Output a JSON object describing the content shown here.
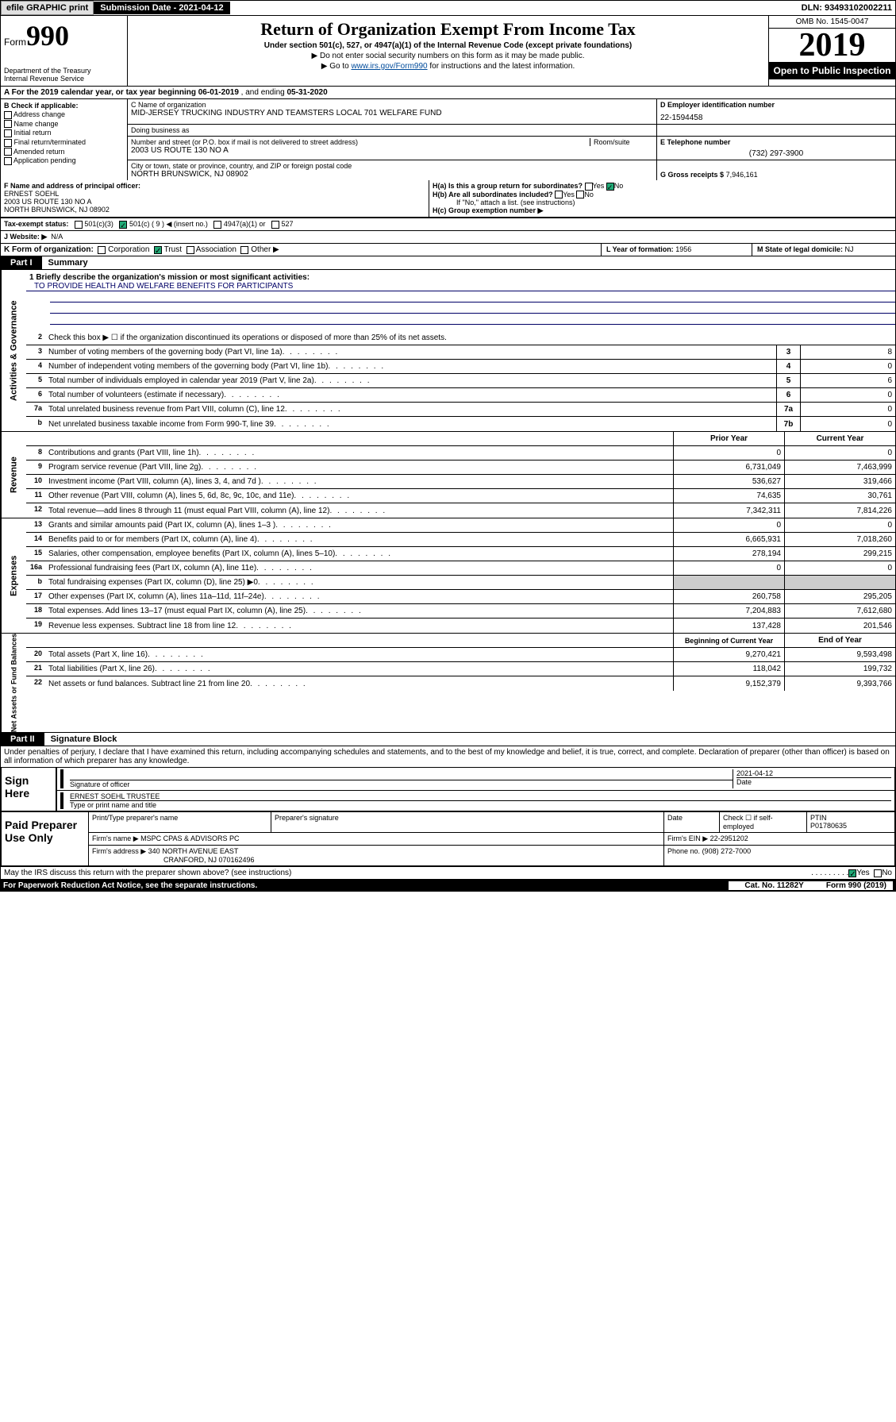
{
  "topbar": {
    "efile": "efile GRAPHIC print",
    "submission_label": "Submission Date - 2021-04-12",
    "dln": "DLN: 93493102002211"
  },
  "header": {
    "form_prefix": "Form",
    "form_num": "990",
    "dept": "Department of the Treasury\nInternal Revenue Service",
    "title": "Return of Organization Exempt From Income Tax",
    "subtitle": "Under section 501(c), 527, or 4947(a)(1) of the Internal Revenue Code (except private foundations)",
    "sub1": "▶ Do not enter social security numbers on this form as it may be made public.",
    "sub2_pre": "▶ Go to ",
    "sub2_link": "www.irs.gov/Form990",
    "sub2_post": " for instructions and the latest information.",
    "omb": "OMB No. 1545-0047",
    "year": "2019",
    "open": "Open to Public Inspection"
  },
  "lineA": {
    "text_pre": "A  For the 2019 calendar year, or tax year beginning ",
    "begin": "06-01-2019",
    "mid": " , and ending ",
    "end": "05-31-2020"
  },
  "boxB": {
    "label": "B Check if applicable:",
    "opts": [
      "Address change",
      "Name change",
      "Initial return",
      "Final return/terminated",
      "Amended return",
      "Application pending"
    ]
  },
  "boxC": {
    "name_label": "C Name of organization",
    "name": "MID-JERSEY TRUCKING INDUSTRY AND TEAMSTERS LOCAL 701 WELFARE FUND",
    "dba_label": "Doing business as",
    "addr_label": "Number and street (or P.O. box if mail is not delivered to street address)",
    "room_label": "Room/suite",
    "addr": "2003 US ROUTE 130 NO A",
    "city_label": "City or town, state or province, country, and ZIP or foreign postal code",
    "city": "NORTH BRUNSWICK, NJ  08902"
  },
  "boxD": {
    "label": "D Employer identification number",
    "val": "22-1594458"
  },
  "boxE": {
    "label": "E Telephone number",
    "val": "(732) 297-3900"
  },
  "boxG": {
    "label": "G Gross receipts $",
    "val": "7,946,161"
  },
  "boxF": {
    "label": "F Name and address of principal officer:",
    "name": "ERNEST SOEHL",
    "addr1": "2003 US ROUTE 130 NO A",
    "addr2": "NORTH BRUNSWICK, NJ  08902"
  },
  "boxH": {
    "a": "H(a)  Is this a group return for subordinates?",
    "a_no": "No",
    "b": "H(b)  Are all subordinates included?",
    "b_note": "If \"No,\" attach a list. (see instructions)",
    "c": "H(c)  Group exemption number ▶"
  },
  "taxStatus": {
    "label": "Tax-exempt status:",
    "opts": [
      "501(c)(3)",
      "501(c) ( 9 ) ◀ (insert no.)",
      "4947(a)(1) or",
      "527"
    ],
    "checked_idx": 1
  },
  "boxJ": {
    "label": "J  Website: ▶",
    "val": "N/A"
  },
  "boxK": {
    "label": "K Form of organization:",
    "opts": [
      "Corporation",
      "Trust",
      "Association",
      "Other ▶"
    ],
    "checked_idx": 1
  },
  "boxL": {
    "label": "L Year of formation:",
    "val": "1956"
  },
  "boxM": {
    "label": "M State of legal domicile:",
    "val": "NJ"
  },
  "part1": {
    "num": "Part I",
    "title": "Summary"
  },
  "mission": {
    "q": "1  Briefly describe the organization's mission or most significant activities:",
    "text": "TO PROVIDE HEALTH AND WELFARE BENEFITS FOR PARTICIPANTS"
  },
  "gov_lines": [
    {
      "n": "2",
      "d": "Check this box ▶ ☐  if the organization discontinued its operations or disposed of more than 25% of its net assets."
    },
    {
      "n": "3",
      "d": "Number of voting members of the governing body (Part VI, line 1a)",
      "box": "3",
      "v": "8"
    },
    {
      "n": "4",
      "d": "Number of independent voting members of the governing body (Part VI, line 1b)",
      "box": "4",
      "v": "0"
    },
    {
      "n": "5",
      "d": "Total number of individuals employed in calendar year 2019 (Part V, line 2a)",
      "box": "5",
      "v": "6"
    },
    {
      "n": "6",
      "d": "Total number of volunteers (estimate if necessary)",
      "box": "6",
      "v": "0"
    },
    {
      "n": "7a",
      "d": "Total unrelated business revenue from Part VIII, column (C), line 12",
      "box": "7a",
      "v": "0"
    },
    {
      "n": "b",
      "d": "Net unrelated business taxable income from Form 990-T, line 39",
      "box": "7b",
      "v": "0"
    }
  ],
  "col_hdrs": {
    "py": "Prior Year",
    "cy": "Current Year"
  },
  "rev_lines": [
    {
      "n": "8",
      "d": "Contributions and grants (Part VIII, line 1h)",
      "py": "0",
      "cy": "0"
    },
    {
      "n": "9",
      "d": "Program service revenue (Part VIII, line 2g)",
      "py": "6,731,049",
      "cy": "7,463,999"
    },
    {
      "n": "10",
      "d": "Investment income (Part VIII, column (A), lines 3, 4, and 7d )",
      "py": "536,627",
      "cy": "319,466"
    },
    {
      "n": "11",
      "d": "Other revenue (Part VIII, column (A), lines 5, 6d, 8c, 9c, 10c, and 11e)",
      "py": "74,635",
      "cy": "30,761"
    },
    {
      "n": "12",
      "d": "Total revenue—add lines 8 through 11 (must equal Part VIII, column (A), line 12)",
      "py": "7,342,311",
      "cy": "7,814,226"
    }
  ],
  "exp_lines": [
    {
      "n": "13",
      "d": "Grants and similar amounts paid (Part IX, column (A), lines 1–3 )",
      "py": "0",
      "cy": "0"
    },
    {
      "n": "14",
      "d": "Benefits paid to or for members (Part IX, column (A), line 4)",
      "py": "6,665,931",
      "cy": "7,018,260"
    },
    {
      "n": "15",
      "d": "Salaries, other compensation, employee benefits (Part IX, column (A), lines 5–10)",
      "py": "278,194",
      "cy": "299,215"
    },
    {
      "n": "16a",
      "d": "Professional fundraising fees (Part IX, column (A), line 11e)",
      "py": "0",
      "cy": "0"
    },
    {
      "n": "b",
      "d": "Total fundraising expenses (Part IX, column (D), line 25) ▶0",
      "py": "",
      "cy": "",
      "shaded": true
    },
    {
      "n": "17",
      "d": "Other expenses (Part IX, column (A), lines 11a–11d, 11f–24e)",
      "py": "260,758",
      "cy": "295,205"
    },
    {
      "n": "18",
      "d": "Total expenses. Add lines 13–17 (must equal Part IX, column (A), line 25)",
      "py": "7,204,883",
      "cy": "7,612,680"
    },
    {
      "n": "19",
      "d": "Revenue less expenses. Subtract line 18 from line 12",
      "py": "137,428",
      "cy": "201,546"
    }
  ],
  "na_hdrs": {
    "b": "Beginning of Current Year",
    "e": "End of Year"
  },
  "na_lines": [
    {
      "n": "20",
      "d": "Total assets (Part X, line 16)",
      "py": "9,270,421",
      "cy": "9,593,498"
    },
    {
      "n": "21",
      "d": "Total liabilities (Part X, line 26)",
      "py": "118,042",
      "cy": "199,732"
    },
    {
      "n": "22",
      "d": "Net assets or fund balances. Subtract line 21 from line 20",
      "py": "9,152,379",
      "cy": "9,393,766"
    }
  ],
  "vtabs": {
    "gov": "Activities & Governance",
    "rev": "Revenue",
    "exp": "Expenses",
    "na": "Net Assets or Fund Balances"
  },
  "part2": {
    "num": "Part II",
    "title": "Signature Block"
  },
  "perjury": "Under penalties of perjury, I declare that I have examined this return, including accompanying schedules and statements, and to the best of my knowledge and belief, it is true, correct, and complete. Declaration of preparer (other than officer) is based on all information of which preparer has any knowledge.",
  "sign": {
    "here": "Sign Here",
    "date": "2021-04-12",
    "sig_label": "Signature of officer",
    "date_label": "Date",
    "name": "ERNEST SOEHL  TRUSTEE",
    "name_label": "Type or print name and title"
  },
  "prep": {
    "title": "Paid Preparer Use Only",
    "h1": "Print/Type preparer's name",
    "h2": "Preparer's signature",
    "h3": "Date",
    "h4": "Check ☐ if self-employed",
    "h5": "PTIN",
    "ptin": "P01780635",
    "firm_label": "Firm's name    ▶",
    "firm": "MSPC CPAS & ADVISORS PC",
    "ein_label": "Firm's EIN ▶",
    "ein": "22-2951202",
    "addr_label": "Firm's address ▶",
    "addr1": "340 NORTH AVENUE EAST",
    "addr2": "CRANFORD, NJ  070162496",
    "phone_label": "Phone no.",
    "phone": "(908) 272-7000"
  },
  "discuss": {
    "q": "May the IRS discuss this return with the preparer shown above? (see instructions)",
    "yes": "Yes",
    "no": "No"
  },
  "footer": {
    "pra": "For Paperwork Reduction Act Notice, see the separate instructions.",
    "cat": "Cat. No. 11282Y",
    "form": "Form 990 (2019)"
  }
}
